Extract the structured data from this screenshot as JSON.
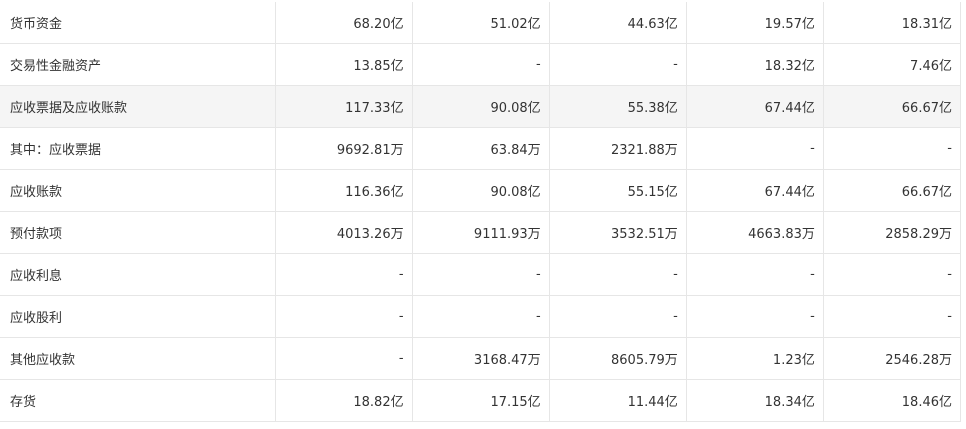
{
  "table": {
    "rows": [
      [
        "货币资金",
        "68.20亿",
        "51.02亿",
        "44.63亿",
        "19.57亿",
        "18.31亿"
      ],
      [
        "交易性金融资产",
        "13.85亿",
        "-",
        "-",
        "18.32亿",
        "7.46亿"
      ],
      [
        "应收票据及应收账款",
        "117.33亿",
        "90.08亿",
        "55.38亿",
        "67.44亿",
        "66.67亿"
      ],
      [
        "其中：应收票据",
        "9692.81万",
        "63.84万",
        "2321.88万",
        "-",
        "-"
      ],
      [
        "应收账款",
        "116.36亿",
        "90.08亿",
        "55.15亿",
        "67.44亿",
        "66.67亿"
      ],
      [
        "预付款项",
        "4013.26万",
        "9111.93万",
        "3532.51万",
        "4663.83万",
        "2858.29万"
      ],
      [
        "应收利息",
        "-",
        "-",
        "-",
        "-",
        "-"
      ],
      [
        "应收股利",
        "-",
        "-",
        "-",
        "-",
        "-"
      ],
      [
        "其他应收款",
        "-",
        "3168.47万",
        "8605.79万",
        "1.23亿",
        "2546.28万"
      ],
      [
        "存货",
        "18.82亿",
        "17.15亿",
        "11.44亿",
        "18.34亿",
        "18.46亿"
      ]
    ]
  }
}
